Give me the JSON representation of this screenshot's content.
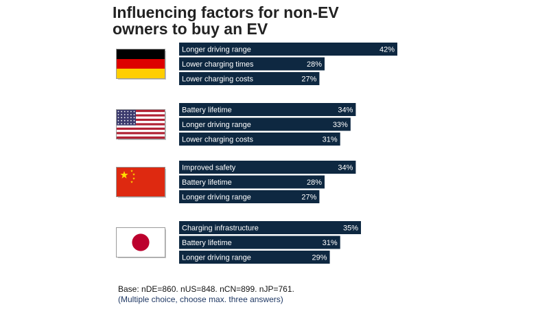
{
  "title_lines": [
    "Influencing factors for non-EV",
    "owners to buy an EV"
  ],
  "colors": {
    "bar": "#0e2841",
    "bar_text": "#ffffff"
  },
  "chart_data": {
    "type": "bar",
    "orientation": "horizontal",
    "title": "Influencing factors for non-EV owners to buy an EV",
    "unit": "%",
    "xlim": [
      0,
      42
    ],
    "groups": [
      {
        "country": "Germany",
        "flag": "germany-flag-icon",
        "categories": [
          "Longer driving range",
          "Lower charging times",
          "Lower charging costs"
        ],
        "values": [
          42,
          28,
          27
        ]
      },
      {
        "country": "United States",
        "flag": "usa-flag-icon",
        "categories": [
          "Battery lifetime",
          "Longer driving range",
          "Lower charging costs"
        ],
        "values": [
          34,
          33,
          31
        ]
      },
      {
        "country": "China",
        "flag": "china-flag-icon",
        "categories": [
          "Improved safety",
          "Battery lifetime",
          "Longer driving range"
        ],
        "values": [
          34,
          28,
          27
        ]
      },
      {
        "country": "Japan",
        "flag": "japan-flag-icon",
        "categories": [
          "Charging infrastructure",
          "Battery lifetime",
          "Longer driving range"
        ],
        "values": [
          35,
          31,
          29
        ]
      }
    ]
  },
  "footer": {
    "base": "Base: nDE=860. nUS=848. nCN=899. nJP=761.",
    "note": "(Multiple choice, choose max. three answers)"
  }
}
